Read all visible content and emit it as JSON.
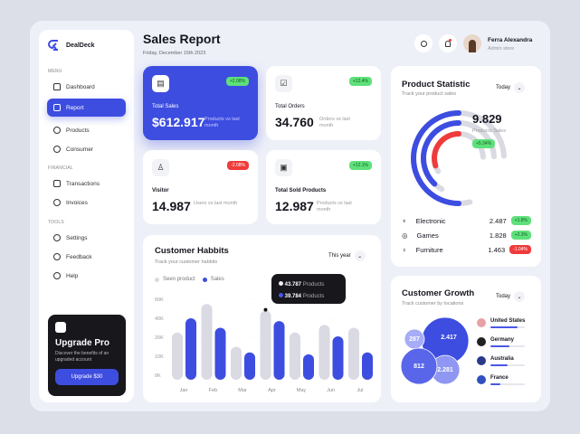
{
  "app": {
    "name": "DealDeck"
  },
  "sidebar": {
    "sections": [
      "MENU",
      "FINANCIAL",
      "TOOLS"
    ],
    "items": [
      {
        "label": "Dashboard",
        "icon": "home-icon"
      },
      {
        "label": "Report",
        "icon": "report-icon",
        "active": true
      },
      {
        "label": "Products",
        "icon": "box-icon"
      },
      {
        "label": "Consumer",
        "icon": "users-icon"
      },
      {
        "label": "Transactions",
        "icon": "transactions-icon"
      },
      {
        "label": "Invoices",
        "icon": "invoice-icon"
      },
      {
        "label": "Settings",
        "icon": "gear-icon"
      },
      {
        "label": "Feedback",
        "icon": "feedback-icon"
      },
      {
        "label": "Help",
        "icon": "help-icon"
      }
    ],
    "upgrade": {
      "title": "Upgrade Pro",
      "desc": "Discover the benefits of an upgraded account",
      "button": "Upgrade $30"
    }
  },
  "header": {
    "title": "Sales Report",
    "date": "Friday, December 15th 2023",
    "user": {
      "name": "Ferra Alexandra",
      "role": "Admin store"
    }
  },
  "stats": [
    {
      "label": "Total Sales",
      "value": "$612.917",
      "sub": "Products vs last month",
      "badge": "+2.08%",
      "positive": true
    },
    {
      "label": "Total Orders",
      "value": "34.760",
      "sub": "Orders vs last month",
      "badge": "+12.4%",
      "positive": true
    },
    {
      "label": "Visitor",
      "value": "14.987",
      "sub": "Users vs last month",
      "badge": "-2.08%",
      "positive": false
    },
    {
      "label": "Total Sold Products",
      "value": "12.987",
      "sub": "Products vs last month",
      "badge": "+12.1%",
      "positive": true
    }
  ],
  "product_statistic": {
    "title": "Product Statistic",
    "subtitle": "Track your product sales",
    "period": "Today",
    "total": "9.829",
    "total_label": "Products Sales",
    "total_badge": "+5.34%",
    "items": [
      {
        "name": "Electronic",
        "value": "2.487",
        "badge": "+1.8%",
        "positive": true,
        "fill": 0.5
      },
      {
        "name": "Games",
        "value": "1.828",
        "badge": "+2.3%",
        "positive": true,
        "fill": 0.38
      },
      {
        "name": "Furniture",
        "value": "1.463",
        "badge": "-1.04%",
        "positive": false,
        "fill": 0.3
      }
    ],
    "colors": [
      "#3d4de0",
      "#3d4de0",
      "#ef3b3b"
    ]
  },
  "customer_habits": {
    "title": "Customer Habbits",
    "subtitle": "Track your customer habbits",
    "period": "This year",
    "tooltip": {
      "seen": "43.787",
      "sales": "39.784",
      "unit": "Products"
    }
  },
  "chart_data": {
    "type": "bar",
    "categories": [
      "Jan",
      "Feb",
      "Mar",
      "Apr",
      "May",
      "Jun",
      "Jul"
    ],
    "yticks": [
      "0K",
      "10K",
      "20K",
      "40K",
      "60K"
    ],
    "series": [
      {
        "name": "Seen product",
        "color": "#d9dae2",
        "values": [
          25000,
          55000,
          15000,
          48000,
          25000,
          33000,
          30000
        ]
      },
      {
        "name": "Sales",
        "color": "#3d4de0",
        "values": [
          40000,
          30000,
          12000,
          37000,
          11000,
          21000,
          12000
        ]
      }
    ],
    "ylim": [
      0,
      60000
    ],
    "grid": true,
    "legend": "top-left"
  },
  "customer_growth": {
    "title": "Customer Growth",
    "subtitle": "Track customer by locations",
    "period": "Today",
    "bubbles": [
      "2.417",
      "287",
      "2.281",
      "812"
    ],
    "countries": [
      {
        "name": "United States",
        "fill": 0.8
      },
      {
        "name": "Germany",
        "fill": 0.55
      },
      {
        "name": "Australia",
        "fill": 0.5
      },
      {
        "name": "France",
        "fill": 0.3
      }
    ]
  }
}
